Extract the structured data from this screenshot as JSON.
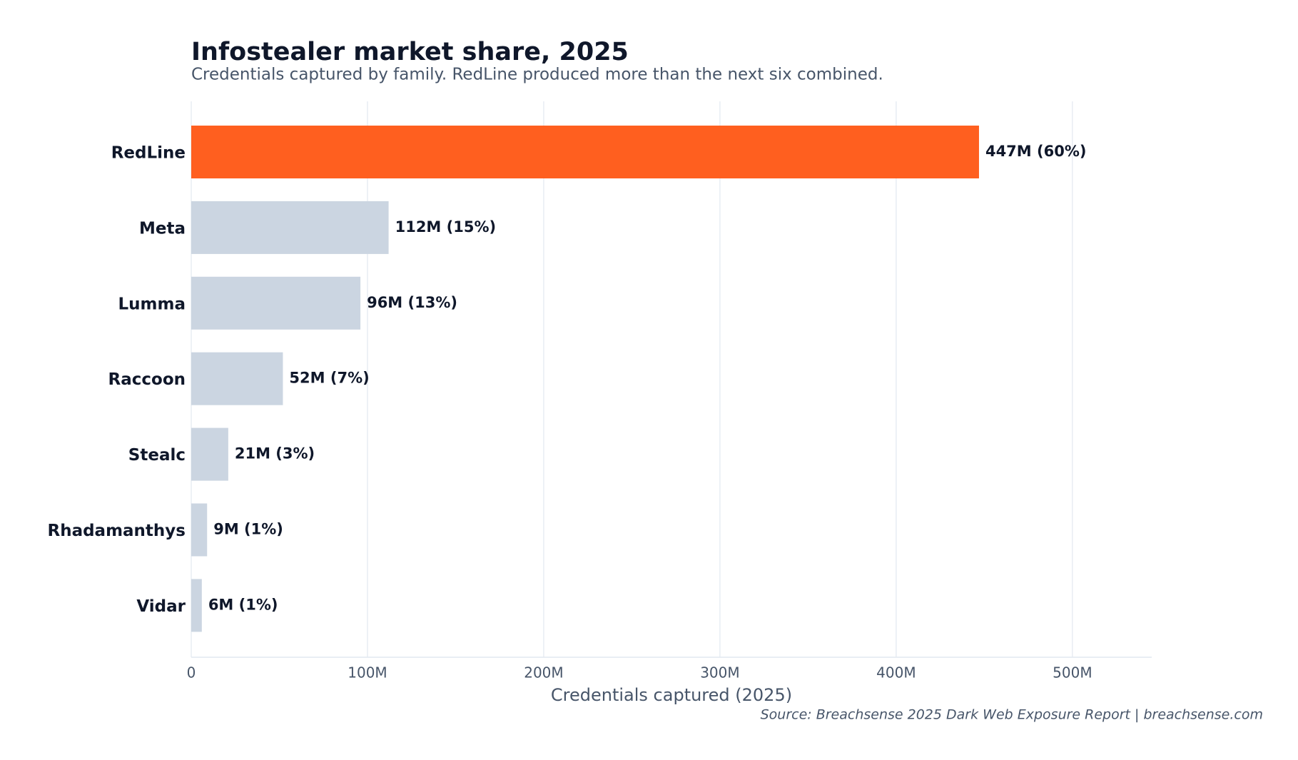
{
  "chart_data": {
    "type": "hbar",
    "title": "Infostealer market share, 2025",
    "subtitle": "Credentials captured by family. RedLine produced more than the next six combined.",
    "x_label": "Credentials captured (2025)",
    "source": "Source: Breachsense 2025 Dark Web Exposure Report  |  breachsense.com",
    "categories": [
      "RedLine",
      "Meta",
      "Lumma",
      "Raccoon",
      "Stealc",
      "Rhadamanthys",
      "Vidar"
    ],
    "values": [
      447000000,
      112000000,
      96000000,
      52000000,
      21000000,
      9000000,
      6000000
    ],
    "value_labels": [
      "447M  (60%)",
      "112M  (15%)",
      "96M  (13%)",
      "52M  (7%)",
      "21M  (3%)",
      "9M  (1%)",
      "6M  (1%)"
    ],
    "colors": [
      "#ff5f1f",
      "#cbd5e1",
      "#cbd5e1",
      "#cbd5e1",
      "#cbd5e1",
      "#cbd5e1",
      "#cbd5e1"
    ],
    "xlim": [
      0,
      545000000
    ],
    "xticks": [
      0,
      {
        "value": 100000000,
        "label": "100M"
      },
      {
        "value": 200000000,
        "label": "200M"
      },
      {
        "value": 300000000,
        "label": "300M"
      },
      {
        "value": 400000000,
        "label": "400M"
      },
      {
        "value": 500000000,
        "label": "500M"
      }
    ],
    "grid": true
  }
}
